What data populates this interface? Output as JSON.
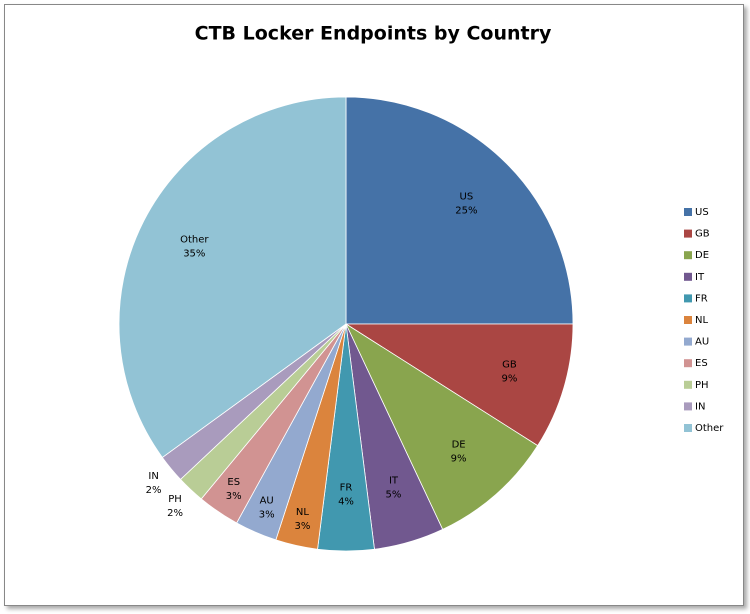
{
  "chart_data": {
    "type": "pie",
    "title": "CTB Locker Endpoints by Country",
    "categories": [
      "US",
      "GB",
      "DE",
      "IT",
      "FR",
      "NL",
      "AU",
      "ES",
      "PH",
      "IN",
      "Other"
    ],
    "values": [
      25,
      9,
      9,
      5,
      4,
      3,
      3,
      3,
      2,
      2,
      35
    ],
    "value_labels": [
      "25%",
      "9%",
      "9%",
      "5%",
      "4%",
      "3%",
      "3%",
      "3%",
      "2%",
      "2%",
      "35%"
    ],
    "colors": [
      "#4572A7",
      "#AA4643",
      "#89A54E",
      "#71588F",
      "#4198AF",
      "#DB843D",
      "#93A9CF",
      "#D19392",
      "#B9CD96",
      "#A99BBD",
      "#92C3D5"
    ],
    "legend": "right"
  }
}
